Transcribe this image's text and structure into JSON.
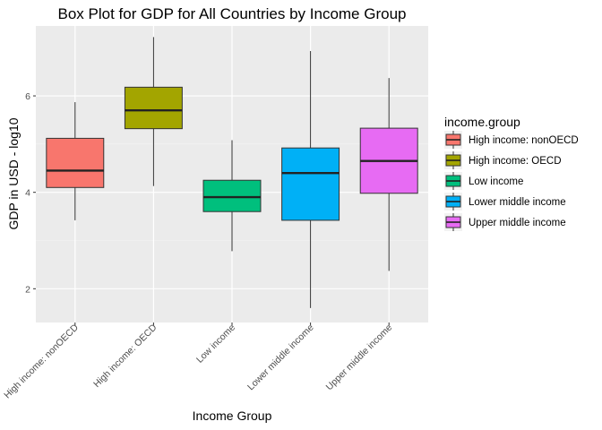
{
  "chart_data": {
    "type": "boxplot",
    "title": "Box Plot for GDP for All Countries by Income Group",
    "xlabel": "Income Group",
    "ylabel": "GDP in USD - log10",
    "ylim": [
      1.3,
      7.45
    ],
    "yticks": [
      2,
      4,
      6
    ],
    "grid": true,
    "legend": {
      "title": "income.group",
      "placement": "right"
    },
    "categories": [
      "High income: nonOECD",
      "High income: OECD",
      "Low income",
      "Lower middle income",
      "Upper middle income"
    ],
    "colors": [
      "#F8766D",
      "#A3A500",
      "#00BF7D",
      "#00B0F6",
      "#E76BF3"
    ],
    "boxes": [
      {
        "min": 3.42,
        "q1": 4.1,
        "median": 4.45,
        "q3": 5.12,
        "max": 5.87
      },
      {
        "min": 4.13,
        "q1": 5.32,
        "median": 5.7,
        "q3": 6.18,
        "max": 7.22
      },
      {
        "min": 2.78,
        "q1": 3.6,
        "median": 3.9,
        "q3": 4.25,
        "max": 5.08
      },
      {
        "min": 1.6,
        "q1": 3.42,
        "median": 4.4,
        "q3": 4.92,
        "max": 6.93
      },
      {
        "min": 2.37,
        "q1": 3.98,
        "median": 4.65,
        "q3": 5.33,
        "max": 6.37
      }
    ]
  }
}
